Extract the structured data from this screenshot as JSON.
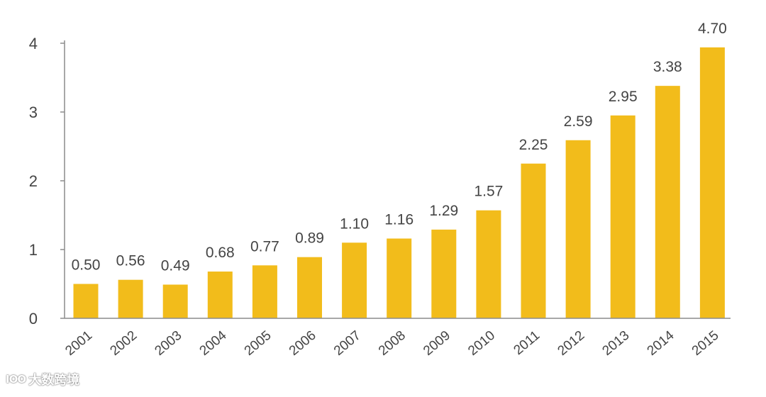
{
  "chart_data": {
    "type": "bar",
    "title": "",
    "xlabel": "",
    "ylabel": "",
    "categories": [
      "2001",
      "2002",
      "2003",
      "2004",
      "2005",
      "2006",
      "2007",
      "2008",
      "2009",
      "2010",
      "2011",
      "2012",
      "2013",
      "2014",
      "2015"
    ],
    "values": [
      0.5,
      0.56,
      0.49,
      0.68,
      0.77,
      0.89,
      1.1,
      1.16,
      1.29,
      1.57,
      2.25,
      2.59,
      2.95,
      3.38,
      4.7
    ],
    "value_labels": [
      "0.50",
      "0.56",
      "0.49",
      "0.68",
      "0.77",
      "0.89",
      "1.10",
      "1.16",
      "1.29",
      "1.57",
      "2.25",
      "2.59",
      "2.95",
      "3.38",
      "4.70"
    ],
    "ylim": [
      0,
      4
    ],
    "yticks": [
      "0",
      "1",
      "2",
      "3",
      "4"
    ],
    "grid": false,
    "bar_color": "#F2BC1B",
    "axis_color": "#8c8c8c",
    "text_color": "#444444"
  },
  "watermark": {
    "logo": "IOO",
    "text": "大数跨境"
  }
}
